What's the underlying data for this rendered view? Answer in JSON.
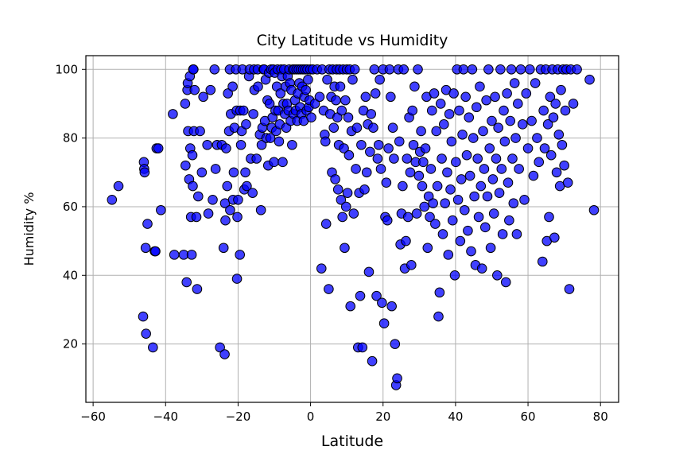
{
  "chart_data": {
    "type": "scatter",
    "title": "City Latitude vs Humidity",
    "xlabel": "Latitude",
    "ylabel": "Humidity %",
    "xlim": [
      -62,
      85
    ],
    "ylim": [
      3,
      104
    ],
    "xticks": [
      -60,
      -40,
      -20,
      0,
      20,
      40,
      60,
      80
    ],
    "yticks": [
      20,
      40,
      60,
      80,
      100
    ],
    "grid": true,
    "marker": {
      "fill": "#0000ff",
      "edge": "#000000",
      "alpha": 0.75
    },
    "points": [
      [
        -54.8,
        62
      ],
      [
        -53,
        66
      ],
      [
        -46.2,
        28
      ],
      [
        -46,
        73
      ],
      [
        -45.9,
        71
      ],
      [
        -45.8,
        70
      ],
      [
        -45.5,
        48
      ],
      [
        -45.4,
        23
      ],
      [
        -45,
        55
      ],
      [
        -43.5,
        19
      ],
      [
        -43,
        47
      ],
      [
        -42.8,
        47
      ],
      [
        -42.5,
        77
      ],
      [
        -42,
        77
      ],
      [
        -41.3,
        59
      ],
      [
        -38,
        87
      ],
      [
        -37.6,
        46
      ],
      [
        -35,
        46
      ],
      [
        -34.6,
        90
      ],
      [
        -34.5,
        72
      ],
      [
        -34.2,
        38
      ],
      [
        -34,
        94
      ],
      [
        -33.9,
        96
      ],
      [
        -33.8,
        82
      ],
      [
        -33.5,
        68
      ],
      [
        -33.3,
        98
      ],
      [
        -33.2,
        77
      ],
      [
        -33,
        57
      ],
      [
        -32.8,
        46
      ],
      [
        -32.6,
        75
      ],
      [
        -32.5,
        66
      ],
      [
        -32.4,
        100
      ],
      [
        -32.3,
        100
      ],
      [
        -32.2,
        82
      ],
      [
        -32,
        94
      ],
      [
        -31.5,
        57
      ],
      [
        -31.3,
        36
      ],
      [
        -31,
        63
      ],
      [
        -30.5,
        82
      ],
      [
        -30,
        70
      ],
      [
        -29.6,
        92
      ],
      [
        -28.5,
        78
      ],
      [
        -28.2,
        58
      ],
      [
        -27.6,
        94
      ],
      [
        -27,
        62
      ],
      [
        -26.5,
        100
      ],
      [
        -26.2,
        71
      ],
      [
        -25.8,
        78
      ],
      [
        -25,
        19
      ],
      [
        -24.5,
        78
      ],
      [
        -24,
        48
      ],
      [
        -23.7,
        17
      ],
      [
        -23.6,
        61
      ],
      [
        -23.5,
        56
      ],
      [
        -23.3,
        77
      ],
      [
        -23,
        66
      ],
      [
        -22.8,
        93
      ],
      [
        -22.5,
        82
      ],
      [
        -22.3,
        100
      ],
      [
        -22.2,
        59
      ],
      [
        -22,
        87
      ],
      [
        -21.5,
        95
      ],
      [
        -21.4,
        62
      ],
      [
        -21.2,
        70
      ],
      [
        -21,
        83
      ],
      [
        -20.6,
        100
      ],
      [
        -20.4,
        88
      ],
      [
        -20.3,
        39
      ],
      [
        -20.2,
        57
      ],
      [
        -20,
        62
      ],
      [
        -19.5,
        46
      ],
      [
        -19.4,
        88
      ],
      [
        -19.2,
        78
      ],
      [
        -19,
        82
      ],
      [
        -18.8,
        100
      ],
      [
        -18.5,
        88
      ],
      [
        -18.3,
        65
      ],
      [
        -18,
        70
      ],
      [
        -17.8,
        84
      ],
      [
        -17.6,
        66
      ],
      [
        -17,
        98
      ],
      [
        -16.8,
        100
      ],
      [
        -16.5,
        74
      ],
      [
        -16,
        64
      ],
      [
        -15.8,
        87
      ],
      [
        -15.6,
        100
      ],
      [
        -15.5,
        94
      ],
      [
        -14.9,
        74
      ],
      [
        -14.6,
        100
      ],
      [
        -14.5,
        95
      ],
      [
        -14,
        81
      ],
      [
        -13.7,
        59
      ],
      [
        -13.5,
        78
      ],
      [
        -13.3,
        83
      ],
      [
        -13,
        100
      ],
      [
        -12.8,
        100
      ],
      [
        -12.6,
        85
      ],
      [
        -12.4,
        97
      ],
      [
        -12.2,
        80
      ],
      [
        -11.9,
        91
      ],
      [
        -11.7,
        72
      ],
      [
        -11.5,
        99
      ],
      [
        -11.3,
        90
      ],
      [
        -11.1,
        80
      ],
      [
        -10.9,
        100
      ],
      [
        -10.7,
        83
      ],
      [
        -10.5,
        86
      ],
      [
        -10.3,
        100
      ],
      [
        -10.1,
        73
      ],
      [
        -9.9,
        99
      ],
      [
        -9.7,
        88
      ],
      [
        -9.5,
        82
      ],
      [
        -9.3,
        95
      ],
      [
        -9.1,
        100
      ],
      [
        -8.9,
        88
      ],
      [
        -8.7,
        79
      ],
      [
        -8.5,
        84
      ],
      [
        -8.3,
        93
      ],
      [
        -8.1,
        100
      ],
      [
        -7.9,
        98
      ],
      [
        -7.7,
        73
      ],
      [
        -7.5,
        90
      ],
      [
        -7.3,
        100
      ],
      [
        -7.1,
        87
      ],
      [
        -6.9,
        95
      ],
      [
        -6.7,
        83
      ],
      [
        -6.5,
        90
      ],
      [
        -6.3,
        98
      ],
      [
        -6.1,
        88
      ],
      [
        -5.9,
        100
      ],
      [
        -5.7,
        96
      ],
      [
        -5.5,
        85
      ],
      [
        -5.3,
        94
      ],
      [
        -5.1,
        78
      ],
      [
        -4.9,
        100
      ],
      [
        -4.7,
        87
      ],
      [
        -4.5,
        100
      ],
      [
        -4.3,
        91
      ],
      [
        -4.1,
        88
      ],
      [
        -3.9,
        100
      ],
      [
        -3.7,
        85
      ],
      [
        -3.5,
        93
      ],
      [
        -3.3,
        100
      ],
      [
        -3.1,
        96
      ],
      [
        -2.9,
        89
      ],
      [
        -2.7,
        100
      ],
      [
        -2.5,
        87
      ],
      [
        -2.3,
        95
      ],
      [
        -2.1,
        100
      ],
      [
        -1.9,
        85
      ],
      [
        -1.7,
        92
      ],
      [
        -1.5,
        100
      ],
      [
        -1.3,
        94
      ],
      [
        -1.1,
        88
      ],
      [
        -0.9,
        100
      ],
      [
        -0.7,
        97
      ],
      [
        -0.5,
        89
      ],
      [
        -0.3,
        91
      ],
      [
        -0.1,
        100
      ],
      [
        0.2,
        86
      ],
      [
        0.6,
        100
      ],
      [
        1.2,
        90
      ],
      [
        1.8,
        100
      ],
      [
        2.5,
        92
      ],
      [
        3,
        42
      ],
      [
        3.2,
        100
      ],
      [
        3.6,
        88
      ],
      [
        3.9,
        81
      ],
      [
        4.1,
        79
      ],
      [
        4.3,
        55
      ],
      [
        4.6,
        97
      ],
      [
        5,
        36
      ],
      [
        5.2,
        100
      ],
      [
        5.4,
        87
      ],
      [
        5.7,
        92
      ],
      [
        5.9,
        70
      ],
      [
        6.1,
        100
      ],
      [
        6.4,
        83
      ],
      [
        6.6,
        95
      ],
      [
        6.8,
        68
      ],
      [
        7,
        91
      ],
      [
        7.2,
        100
      ],
      [
        7.4,
        86
      ],
      [
        7.6,
        65
      ],
      [
        7.8,
        78
      ],
      [
        8,
        100
      ],
      [
        8.2,
        95
      ],
      [
        8.4,
        62
      ],
      [
        8.6,
        88
      ],
      [
        8.8,
        57
      ],
      [
        9,
        100
      ],
      [
        9.2,
        77
      ],
      [
        9.4,
        48
      ],
      [
        9.6,
        91
      ],
      [
        9.8,
        60
      ],
      [
        10,
        100
      ],
      [
        10.2,
        64
      ],
      [
        10.4,
        86
      ],
      [
        10.6,
        75
      ],
      [
        10.8,
        100
      ],
      [
        11,
        31
      ],
      [
        11.3,
        82
      ],
      [
        11.6,
        97
      ],
      [
        11.9,
        58
      ],
      [
        12.2,
        100
      ],
      [
        12.5,
        71
      ],
      [
        12.8,
        83
      ],
      [
        13.1,
        19
      ],
      [
        13.4,
        64
      ],
      [
        13.7,
        34
      ],
      [
        14,
        78
      ],
      [
        14.3,
        19
      ],
      [
        14.6,
        88
      ],
      [
        14.9,
        65
      ],
      [
        15.2,
        92
      ],
      [
        15.5,
        70
      ],
      [
        15.8,
        84
      ],
      [
        16.1,
        41
      ],
      [
        16.4,
        76
      ],
      [
        16.7,
        87
      ],
      [
        17,
        15
      ],
      [
        17.3,
        83
      ],
      [
        17.6,
        100
      ],
      [
        17.9,
        93
      ],
      [
        18.2,
        34
      ],
      [
        18.5,
        74
      ],
      [
        18.8,
        78
      ],
      [
        19.1,
        97
      ],
      [
        19.4,
        71
      ],
      [
        19.7,
        32
      ],
      [
        20,
        100
      ],
      [
        20.3,
        26
      ],
      [
        20.6,
        57
      ],
      [
        20.9,
        67
      ],
      [
        21.2,
        56
      ],
      [
        21.5,
        77
      ],
      [
        21.8,
        100
      ],
      [
        22.1,
        92
      ],
      [
        22.4,
        31
      ],
      [
        22.7,
        83
      ],
      [
        23,
        74
      ],
      [
        23.3,
        20
      ],
      [
        23.6,
        8
      ],
      [
        23.9,
        10
      ],
      [
        24.2,
        100
      ],
      [
        24.5,
        79
      ],
      [
        24.8,
        49
      ],
      [
        25.1,
        58
      ],
      [
        25.4,
        66
      ],
      [
        25.7,
        100
      ],
      [
        26,
        42
      ],
      [
        26.3,
        50
      ],
      [
        26.6,
        74
      ],
      [
        26.9,
        57
      ],
      [
        27.2,
        86
      ],
      [
        27.5,
        70
      ],
      [
        27.8,
        43
      ],
      [
        28.1,
        88
      ],
      [
        28.4,
        78
      ],
      [
        28.7,
        95
      ],
      [
        29,
        73
      ],
      [
        29.3,
        58
      ],
      [
        29.6,
        100
      ],
      [
        29.9,
        69
      ],
      [
        30.2,
        76
      ],
      [
        30.5,
        82
      ],
      [
        30.8,
        66
      ],
      [
        31.1,
        73
      ],
      [
        31.4,
        60
      ],
      [
        31.7,
        77
      ],
      [
        32,
        92
      ],
      [
        32.3,
        48
      ],
      [
        32.6,
        63
      ],
      [
        32.9,
        57
      ],
      [
        33.2,
        71
      ],
      [
        33.5,
        88
      ],
      [
        33.8,
        61
      ],
      [
        34.1,
        93
      ],
      [
        34.4,
        55
      ],
      [
        34.7,
        82
      ],
      [
        35,
        66
      ],
      [
        35.3,
        28
      ],
      [
        35.6,
        35
      ],
      [
        35.9,
        90
      ],
      [
        36.2,
        74
      ],
      [
        36.5,
        52
      ],
      [
        36.8,
        84
      ],
      [
        37.1,
        61
      ],
      [
        37.4,
        94
      ],
      [
        37.7,
        70
      ],
      [
        38,
        46
      ],
      [
        38.3,
        87
      ],
      [
        38.6,
        65
      ],
      [
        38.9,
        79
      ],
      [
        39.2,
        56
      ],
      [
        39.5,
        93
      ],
      [
        39.8,
        40
      ],
      [
        40.1,
        73
      ],
      [
        40.4,
        100
      ],
      [
        40.7,
        62
      ],
      [
        41,
        88
      ],
      [
        41.3,
        50
      ],
      [
        41.6,
        68
      ],
      [
        41.9,
        81
      ],
      [
        42.2,
        100
      ],
      [
        42.5,
        59
      ],
      [
        42.8,
        92
      ],
      [
        43.1,
        75
      ],
      [
        43.4,
        53
      ],
      [
        43.7,
        86
      ],
      [
        44,
        69
      ],
      [
        44.3,
        47
      ],
      [
        44.6,
        100
      ],
      [
        44.9,
        80
      ],
      [
        45.2,
        63
      ],
      [
        45.5,
        43
      ],
      [
        45.8,
        89
      ],
      [
        46.1,
        74
      ],
      [
        46.4,
        57
      ],
      [
        46.7,
        95
      ],
      [
        47,
        66
      ],
      [
        47.3,
        42
      ],
      [
        47.6,
        82
      ],
      [
        47.9,
        71
      ],
      [
        48.2,
        54
      ],
      [
        48.5,
        91
      ],
      [
        48.8,
        63
      ],
      [
        49.1,
        100
      ],
      [
        49.4,
        77
      ],
      [
        49.7,
        48
      ],
      [
        50,
        85
      ],
      [
        50.3,
        68
      ],
      [
        50.6,
        58
      ],
      [
        50.9,
        92
      ],
      [
        51.2,
        74
      ],
      [
        51.5,
        40
      ],
      [
        51.8,
        83
      ],
      [
        52.1,
        64
      ],
      [
        52.4,
        100
      ],
      [
        52.7,
        71
      ],
      [
        53,
        52
      ],
      [
        53.3,
        88
      ],
      [
        53.6,
        79
      ],
      [
        53.9,
        38
      ],
      [
        54.2,
        93
      ],
      [
        54.5,
        67
      ],
      [
        54.8,
        56
      ],
      [
        55.1,
        85
      ],
      [
        55.4,
        100
      ],
      [
        55.7,
        74
      ],
      [
        56,
        61
      ],
      [
        56.3,
        96
      ],
      [
        56.6,
        80
      ],
      [
        56.9,
        52
      ],
      [
        57.2,
        90
      ],
      [
        57.5,
        71
      ],
      [
        58,
        100
      ],
      [
        58.5,
        84
      ],
      [
        59,
        62
      ],
      [
        59.5,
        93
      ],
      [
        60,
        77
      ],
      [
        60.5,
        100
      ],
      [
        61,
        85
      ],
      [
        61.5,
        69
      ],
      [
        62,
        96
      ],
      [
        62.5,
        80
      ],
      [
        63,
        73
      ],
      [
        63.5,
        100
      ],
      [
        64,
        44
      ],
      [
        64.3,
        88
      ],
      [
        64.6,
        77
      ],
      [
        64.9,
        100
      ],
      [
        65.2,
        50
      ],
      [
        65.5,
        84
      ],
      [
        65.8,
        57
      ],
      [
        66.1,
        92
      ],
      [
        66.4,
        75
      ],
      [
        66.7,
        100
      ],
      [
        67,
        86
      ],
      [
        67.3,
        51
      ],
      [
        67.6,
        90
      ],
      [
        67.9,
        70
      ],
      [
        68.2,
        100
      ],
      [
        68.5,
        81
      ],
      [
        68.8,
        66
      ],
      [
        69.1,
        94
      ],
      [
        69.4,
        78
      ],
      [
        69.7,
        100
      ],
      [
        70,
        72
      ],
      [
        70.3,
        88
      ],
      [
        70.6,
        100
      ],
      [
        71,
        67
      ],
      [
        71.4,
        36
      ],
      [
        71.8,
        100
      ],
      [
        72.5,
        90
      ],
      [
        73.5,
        100
      ],
      [
        77,
        97
      ],
      [
        78.2,
        59
      ]
    ]
  }
}
